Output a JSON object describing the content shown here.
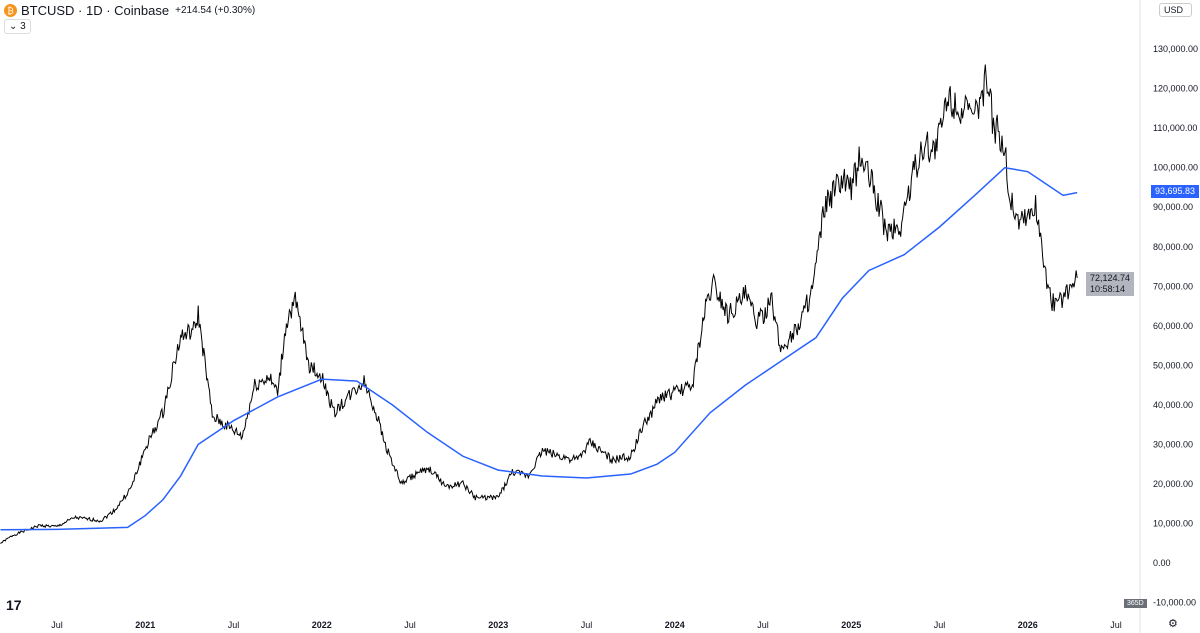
{
  "header": {
    "symbol": "BTCUSD · 1D · Coinbase",
    "change": "+214.54 (+0.30%)",
    "indicators_toggle": "⌄ 3",
    "currency": "USD",
    "logo": "₿"
  },
  "footer": {
    "timeframe_badge": "365D",
    "settings_icon": "⚙",
    "tv_logo": "17"
  },
  "labels": {
    "ma_value": "93,695.83",
    "last_price": "72,124.74",
    "countdown": "10:58:14"
  },
  "colors": {
    "price": "#000000",
    "ma": "#2962ff",
    "ma_label": "#2962ff",
    "price_label": "#b2b5be"
  },
  "chart_data": {
    "type": "line",
    "title": "BTCUSD · 1D · Coinbase",
    "ylim": [
      -10000,
      135000
    ],
    "yticks": [
      "130,000.00",
      "120,000.00",
      "110,000.00",
      "100,000.00",
      "90,000.00",
      "80,000.00",
      "70,000.00",
      "60,000.00",
      "50,000.00",
      "40,000.00",
      "30,000.00",
      "20,000.00",
      "10,000.00",
      "0.00",
      "-10,000.00"
    ],
    "ytick_values": [
      130000,
      120000,
      110000,
      100000,
      90000,
      80000,
      70000,
      60000,
      50000,
      40000,
      30000,
      20000,
      10000,
      0,
      -10000
    ],
    "xticks": [
      {
        "t": 2020.5,
        "label": "Jul"
      },
      {
        "t": 2021,
        "label": "2021"
      },
      {
        "t": 2021.5,
        "label": "Jul"
      },
      {
        "t": 2022,
        "label": "2022"
      },
      {
        "t": 2022.5,
        "label": "Jul"
      },
      {
        "t": 2023,
        "label": "2023"
      },
      {
        "t": 2023.5,
        "label": "Jul"
      },
      {
        "t": 2024,
        "label": "2024"
      },
      {
        "t": 2024.5,
        "label": "Jul"
      },
      {
        "t": 2025,
        "label": "2025"
      },
      {
        "t": 2025.5,
        "label": "Jul"
      },
      {
        "t": 2026,
        "label": "2026"
      },
      {
        "t": 2026.5,
        "label": "Jul"
      }
    ],
    "series": [
      {
        "name": "BTCUSD",
        "x": [
          2020.18,
          2020.25,
          2020.4,
          2020.5,
          2020.6,
          2020.75,
          2020.83,
          2020.92,
          2021.0,
          2021.1,
          2021.15,
          2021.2,
          2021.28,
          2021.3,
          2021.38,
          2021.45,
          2021.55,
          2021.62,
          2021.7,
          2021.75,
          2021.8,
          2021.85,
          2021.93,
          2022.0,
          2022.07,
          2022.15,
          2022.24,
          2022.3,
          2022.36,
          2022.45,
          2022.55,
          2022.62,
          2022.7,
          2022.8,
          2022.87,
          2023.0,
          2023.08,
          2023.17,
          2023.25,
          2023.35,
          2023.45,
          2023.52,
          2023.65,
          2023.75,
          2023.82,
          2023.92,
          2024.0,
          2024.1,
          2024.18,
          2024.22,
          2024.3,
          2024.4,
          2024.47,
          2024.55,
          2024.6,
          2024.7,
          2024.78,
          2024.85,
          2024.95,
          2025.0,
          2025.05,
          2025.12,
          2025.2,
          2025.28,
          2025.33,
          2025.4,
          2025.48,
          2025.55,
          2025.62,
          2025.7,
          2025.77,
          2025.8,
          2025.87,
          2025.9,
          2025.95,
          2026.0,
          2026.05,
          2026.09,
          2026.12,
          2026.15,
          2026.2,
          2026.25,
          2026.28
        ],
        "values": [
          5000,
          7000,
          9500,
          9200,
          11500,
          10700,
          13500,
          19000,
          29000,
          38000,
          48000,
          57000,
          59000,
          63000,
          37000,
          35000,
          32000,
          45000,
          47000,
          43000,
          61000,
          66000,
          50000,
          47000,
          38000,
          42000,
          46000,
          39000,
          30000,
          20000,
          23000,
          23500,
          19500,
          20000,
          16500,
          16600,
          23000,
          22000,
          28500,
          27000,
          26000,
          30500,
          26000,
          27000,
          34500,
          42000,
          43000,
          45000,
          66000,
          71000,
          63000,
          68000,
          61000,
          66000,
          54000,
          60000,
          69000,
          90000,
          97000,
          94000,
          103000,
          96000,
          84000,
          85000,
          95000,
          105000,
          105000,
          118000,
          115000,
          112000,
          123000,
          112000,
          105000,
          92000,
          87000,
          88000,
          90000,
          77000,
          68000,
          65000,
          67000,
          70000,
          72124.74
        ]
      },
      {
        "name": "Moving Average",
        "x": [
          2020.18,
          2020.5,
          2020.9,
          2021.0,
          2021.1,
          2021.2,
          2021.3,
          2021.5,
          2021.75,
          2022.0,
          2022.2,
          2022.4,
          2022.6,
          2022.8,
          2023.0,
          2023.25,
          2023.5,
          2023.75,
          2023.9,
          2024.0,
          2024.2,
          2024.4,
          2024.6,
          2024.8,
          2024.95,
          2025.1,
          2025.3,
          2025.5,
          2025.7,
          2025.87,
          2026.0,
          2026.1,
          2026.2,
          2026.28
        ],
        "values": [
          8400,
          8500,
          9000,
          12000,
          16000,
          22000,
          30000,
          36000,
          42000,
          46500,
          46000,
          40000,
          33000,
          27000,
          23500,
          22000,
          21500,
          22500,
          25000,
          28000,
          38000,
          45000,
          51000,
          57000,
          67000,
          74000,
          78000,
          85000,
          93000,
          100000,
          99000,
          96000,
          93000,
          93695.83
        ]
      }
    ]
  }
}
